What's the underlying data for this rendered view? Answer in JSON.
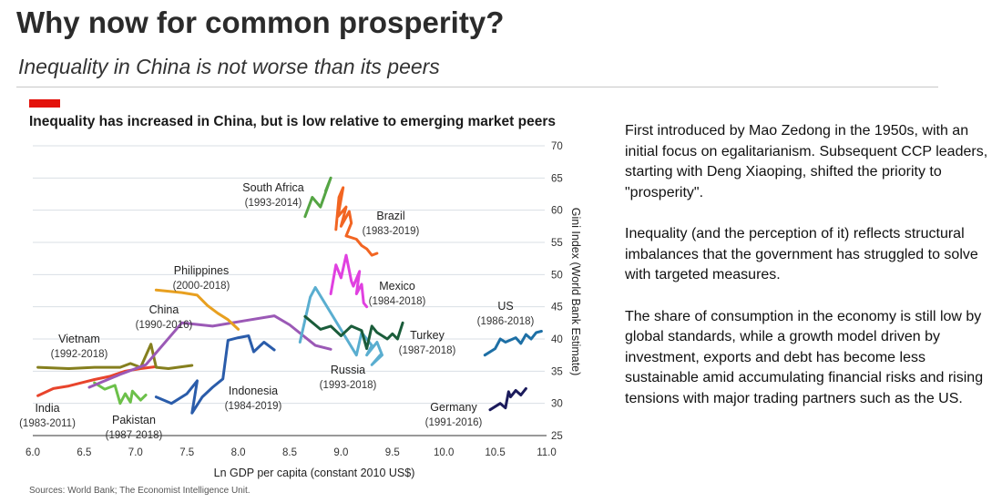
{
  "slide": {
    "title": "Why now for common prosperity?",
    "subtitle": "Inequality in China is not worse than its peers"
  },
  "notes": [
    "First introduced by Mao Zedong in the 1950s, with an initial focus on egalitarianism. Subsequent CCP leaders, starting with Deng Xiaoping, shifted the priority to \"prosperity\".",
    "Inequality (and the perception of it) reflects structural imbalances that the government has struggled to solve with targeted measures.",
    "The share of consumption in the economy is still low by global standards, while a growth model driven by investment, exports and debt has become less sustainable amid accumulating financial risks and rising tensions with major trading partners such as the US."
  ],
  "chart_data": {
    "type": "line",
    "title": "Inequality has increased in China, but is low relative to emerging market peers",
    "xlabel": "Ln GDP per capita (constant 2010 US$)",
    "ylabel": "Gini Index (World Bank Estimate)",
    "xlim": [
      6.0,
      11.0
    ],
    "ylim": [
      25,
      70
    ],
    "x_ticks": [
      "6.0",
      "6.5",
      "7.0",
      "7.5",
      "8.0",
      "8.5",
      "9.0",
      "9.5",
      "10.0",
      "10.5",
      "11.0"
    ],
    "y_ticks": [
      "25",
      "30",
      "35",
      "40",
      "45",
      "50",
      "55",
      "60",
      "65",
      "70"
    ],
    "y_axis_side": "right",
    "grid": "horizontal",
    "accent_color": "#e3120b",
    "sources": "Sources: World Bank; The Economist Intelligence Unit.",
    "series": [
      {
        "name": "India",
        "years": "(1983-2011)",
        "color": "#e8442c",
        "x": [
          6.05,
          6.2,
          6.35,
          6.5,
          6.6,
          6.75,
          6.9,
          7.05,
          7.2
        ],
        "y": [
          31.2,
          32.3,
          32.7,
          33.3,
          33.7,
          34.2,
          35.0,
          35.4,
          35.7
        ]
      },
      {
        "name": "Pakistan",
        "years": "(1987-2018)",
        "color": "#6cc04a",
        "x": [
          6.6,
          6.7,
          6.8,
          6.85,
          6.9,
          6.95,
          6.97,
          7.05,
          7.1
        ],
        "y": [
          33.2,
          32.2,
          32.8,
          30.0,
          31.5,
          30.2,
          31.9,
          30.5,
          31.3
        ]
      },
      {
        "name": "Vietnam",
        "years": "(1992-2018)",
        "color": "#857f1e",
        "x": [
          6.05,
          6.35,
          6.6,
          6.85,
          6.95,
          7.05,
          7.15,
          7.2,
          7.32,
          7.55
        ],
        "y": [
          35.6,
          35.4,
          35.6,
          35.6,
          36.2,
          35.6,
          39.2,
          35.6,
          35.4,
          35.9
        ]
      },
      {
        "name": "China",
        "years": "(1990-2016)",
        "color": "#9b59b6",
        "x": [
          6.55,
          6.85,
          7.1,
          7.45,
          7.75,
          8.05,
          8.35,
          8.5,
          8.75,
          8.9
        ],
        "y": [
          32.5,
          34.5,
          36.0,
          42.5,
          42.0,
          42.8,
          43.6,
          42.2,
          39.0,
          38.4
        ]
      },
      {
        "name": "Philippines",
        "years": "(2000-2018)",
        "color": "#e8a020",
        "x": [
          7.2,
          7.45,
          7.6,
          7.7,
          7.8,
          7.9,
          8.0
        ],
        "y": [
          47.6,
          47.2,
          46.8,
          45.2,
          44.0,
          43.0,
          41.5
        ]
      },
      {
        "name": "Indonesia",
        "years": "(1984-2019)",
        "color": "#2a5caa",
        "x": [
          7.2,
          7.35,
          7.5,
          7.6,
          7.55,
          7.65,
          7.75,
          7.85,
          7.9,
          8.0,
          8.1,
          8.15,
          8.25,
          8.35
        ],
        "y": [
          31.0,
          30.0,
          31.5,
          33.5,
          28.5,
          31.0,
          32.5,
          33.8,
          39.8,
          40.2,
          40.5,
          38.0,
          39.5,
          38.3
        ]
      },
      {
        "name": "South Africa",
        "years": "(1993-2014)",
        "color": "#55a544",
        "x": [
          8.65,
          8.72,
          8.8,
          8.9,
          8.85
        ],
        "y": [
          59.0,
          62.0,
          60.5,
          65.0,
          63.0
        ]
      },
      {
        "name": "Brazil",
        "years": "(1983-2019)",
        "color": "#f26522",
        "x": [
          8.95,
          8.98,
          9.02,
          8.97,
          9.05,
          9.0,
          9.08,
          9.1,
          9.05,
          9.15,
          9.2,
          9.25,
          9.3,
          9.35
        ],
        "y": [
          57.0,
          62.0,
          63.5,
          59.0,
          60.5,
          57.5,
          59.8,
          58.0,
          56.0,
          55.5,
          54.5,
          54.0,
          53.0,
          53.3
        ]
      },
      {
        "name": "Mexico",
        "years": "(1984-2018)",
        "color": "#e040e0",
        "x": [
          8.9,
          8.95,
          9.0,
          9.05,
          9.1,
          9.12,
          9.18,
          9.15,
          9.2,
          9.22,
          9.25
        ],
        "y": [
          47.0,
          51.5,
          49.5,
          53.0,
          49.0,
          48.2,
          50.5,
          47.0,
          48.5,
          45.6,
          45.0
        ]
      },
      {
        "name": "Russia",
        "years": "(1993-2018)",
        "color": "#5aaed0",
        "x": [
          8.6,
          8.7,
          8.75,
          9.15,
          9.2,
          9.3,
          9.25,
          9.35,
          9.4,
          9.3,
          9.38
        ],
        "y": [
          39.5,
          46.5,
          48.0,
          37.5,
          41.0,
          39.0,
          37.5,
          39.5,
          37.5,
          36.0,
          37.5
        ]
      },
      {
        "name": "Turkey",
        "years": "(1987-2018)",
        "color": "#1a5c3a",
        "x": [
          8.65,
          8.8,
          8.9,
          9.0,
          9.1,
          9.2,
          9.25,
          9.3,
          9.35,
          9.45,
          9.5,
          9.55,
          9.6
        ],
        "y": [
          43.5,
          41.5,
          42.0,
          40.5,
          42.0,
          41.3,
          38.5,
          42.0,
          41.0,
          40.0,
          40.8,
          40.0,
          42.5
        ]
      },
      {
        "name": "US",
        "years": "(1986-2018)",
        "color": "#1d6fa5",
        "x": [
          10.4,
          10.5,
          10.55,
          10.6,
          10.7,
          10.75,
          10.8,
          10.85,
          10.9,
          10.95
        ],
        "y": [
          37.5,
          38.5,
          40.0,
          39.5,
          40.2,
          39.3,
          40.7,
          40.0,
          41.0,
          41.2
        ]
      },
      {
        "name": "Germany",
        "years": "(1991-2016)",
        "color": "#1b1b5c",
        "x": [
          10.45,
          10.55,
          10.6,
          10.63,
          10.65,
          10.7,
          10.75,
          10.8
        ],
        "y": [
          29.0,
          30.0,
          29.3,
          31.8,
          31.0,
          32.0,
          31.3,
          32.3
        ]
      }
    ]
  }
}
